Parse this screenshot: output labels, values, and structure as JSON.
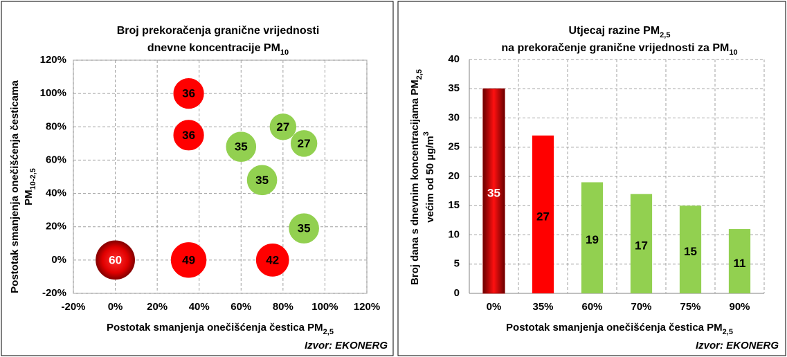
{
  "chart_data": [
    {
      "type": "bubble",
      "title": [
        "Broj prekoračenja granične vrijednosti",
        "dnevne koncentracije PM",
        "10"
      ],
      "xlabel": [
        "Postotak smanjenja onečišćenja čestica PM",
        "2,5"
      ],
      "ylabel": [
        "Postotak smanjenja onečišćenja česticama",
        "PM",
        "10-2,5"
      ],
      "source": "Izvor: EKONERG",
      "x": [
        0,
        35,
        75,
        35,
        35,
        60,
        70,
        80,
        90,
        90
      ],
      "y": [
        0,
        0,
        0,
        100,
        75,
        68,
        48,
        80,
        70,
        19
      ],
      "sizes": [
        60,
        49,
        42,
        36,
        36,
        35,
        35,
        27,
        27,
        35
      ],
      "colors": [
        "#8b0000",
        "#ff0000",
        "#ff0000",
        "#ff0000",
        "#ff0000",
        "#92d050",
        "#92d050",
        "#92d050",
        "#92d050",
        "#92d050"
      ],
      "label_colors": [
        "#ffffff",
        "#000000",
        "#000000",
        "#000000",
        "#000000",
        "#000000",
        "#000000",
        "#000000",
        "#000000",
        "#000000"
      ],
      "xlim": [
        -20,
        120
      ],
      "xticks": [
        {
          "value": -20,
          "label": "-20%"
        },
        {
          "value": 0,
          "label": "0%"
        },
        {
          "value": 20,
          "label": "20%"
        },
        {
          "value": 40,
          "label": "40%"
        },
        {
          "value": 60,
          "label": "60%"
        },
        {
          "value": 80,
          "label": "80%"
        },
        {
          "value": 100,
          "label": "100%"
        },
        {
          "value": 120,
          "label": "120%"
        }
      ],
      "ylim": [
        -20,
        120
      ],
      "yticks": [
        {
          "value": -20,
          "label": "-20%"
        },
        {
          "value": 0,
          "label": "0%"
        },
        {
          "value": 20,
          "label": "20%"
        },
        {
          "value": 40,
          "label": "40%"
        },
        {
          "value": 60,
          "label": "60%"
        },
        {
          "value": 80,
          "label": "80%"
        },
        {
          "value": 100,
          "label": "100%"
        },
        {
          "value": 120,
          "label": "120%"
        }
      ],
      "grid": true
    },
    {
      "type": "bar",
      "title": [
        "Utjecaj razine PM",
        "2,5",
        "na prekoračenje granične vrijednosti za PM",
        "10"
      ],
      "xlabel": [
        "Postotak smanjenja onečišćenja čestica PM",
        "2,5"
      ],
      "ylabel": [
        "Broj dana s dnevnim koncentracijama PM",
        "2,5",
        "većim od 50 µg/m",
        "3"
      ],
      "source": "Izvor: EKONERG",
      "categories": [
        "0%",
        "35%",
        "60%",
        "70%",
        "75%",
        "90%"
      ],
      "values": [
        35,
        27,
        19,
        17,
        15,
        11
      ],
      "colors": [
        "#8b0000",
        "#ff0000",
        "#92d050",
        "#92d050",
        "#92d050",
        "#92d050"
      ],
      "label_colors": [
        "#ffffff",
        "#000000",
        "#000000",
        "#000000",
        "#000000",
        "#000000"
      ],
      "ylim": [
        0,
        40
      ],
      "yticks": [
        0,
        5,
        10,
        15,
        20,
        25,
        30,
        35,
        40
      ],
      "grid": true
    }
  ]
}
